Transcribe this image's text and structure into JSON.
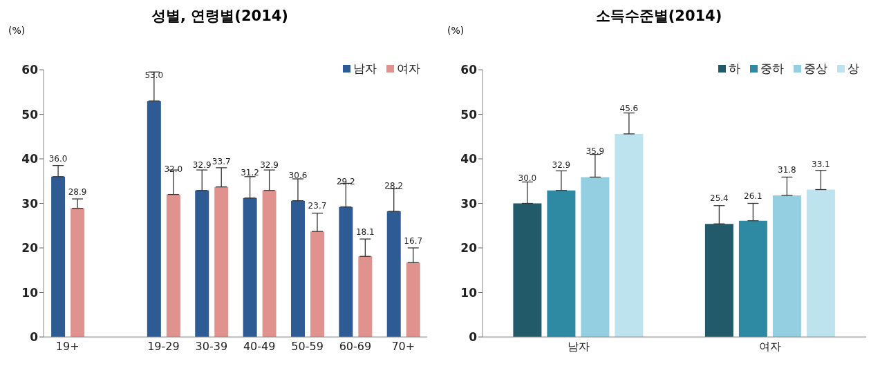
{
  "chart_data": [
    {
      "type": "bar",
      "title": "성별, 연령별(2014)",
      "ylabel": "(%)",
      "categories": [
        "19+",
        null,
        "19-29",
        "30-39",
        "40-49",
        "50-59",
        "60-69",
        "70+"
      ],
      "series": [
        {
          "name": "남자",
          "color": "#2e5b94",
          "values": [
            36.0,
            null,
            53.0,
            32.9,
            31.2,
            30.6,
            29.2,
            28.2
          ],
          "value_labels": [
            "36.0",
            null,
            "53.0",
            "32.9",
            "31.2",
            "30.6",
            "29.2",
            "28.2"
          ],
          "errors": [
            [
              36.0,
              38.5
            ],
            null,
            [
              53.0,
              59.5
            ],
            [
              32.9,
              37.5
            ],
            [
              31.2,
              36.0
            ],
            [
              30.6,
              35.5
            ],
            [
              29.2,
              34.5
            ],
            [
              28.2,
              33.3
            ]
          ]
        },
        {
          "name": "여자",
          "color": "#e0928f",
          "values": [
            28.9,
            null,
            32.0,
            33.7,
            32.9,
            23.7,
            18.1,
            16.7
          ],
          "value_labels": [
            "28.9",
            null,
            "32.0",
            "33.7",
            "32.9",
            "23.7",
            "18.1",
            "16.7"
          ],
          "errors": [
            [
              28.9,
              31.0
            ],
            null,
            [
              32.0,
              37.5
            ],
            [
              33.7,
              38.0
            ],
            [
              32.9,
              37.5
            ],
            [
              23.7,
              27.8
            ],
            [
              18.1,
              22.0
            ],
            [
              16.7,
              20.0
            ]
          ]
        }
      ],
      "ylim": [
        0,
        60
      ],
      "yticks": [
        0,
        10,
        20,
        30,
        40,
        50,
        60
      ],
      "grid": false,
      "legend": "top right"
    },
    {
      "type": "bar",
      "title": "소득수준별(2014)",
      "ylabel": "(%)",
      "categories": [
        "남자",
        "여자"
      ],
      "series": [
        {
          "name": "하",
          "color": "#235a6a",
          "values": [
            30.0,
            25.4
          ],
          "value_labels": [
            "30.0",
            "25.4"
          ],
          "errors": [
            [
              30.0,
              34.8
            ],
            [
              25.4,
              29.5
            ]
          ]
        },
        {
          "name": "중하",
          "color": "#2e8aa3",
          "values": [
            32.9,
            26.1
          ],
          "value_labels": [
            "32.9",
            "26.1"
          ],
          "errors": [
            [
              32.9,
              37.3
            ],
            [
              26.1,
              30.0
            ]
          ]
        },
        {
          "name": "중상",
          "color": "#93cfe0",
          "values": [
            35.9,
            31.8
          ],
          "value_labels": [
            "35.9",
            "31.8"
          ],
          "errors": [
            [
              35.9,
              41.0
            ],
            [
              31.8,
              35.9
            ]
          ]
        },
        {
          "name": "상",
          "color": "#bde3ee",
          "values": [
            45.6,
            33.1
          ],
          "value_labels": [
            "45.6",
            "33.1"
          ],
          "errors": [
            [
              45.6,
              50.3
            ],
            [
              33.1,
              37.4
            ]
          ]
        }
      ],
      "ylim": [
        0,
        60
      ],
      "yticks": [
        0,
        10,
        20,
        30,
        40,
        50,
        60
      ],
      "grid": false,
      "legend": "top right"
    }
  ]
}
